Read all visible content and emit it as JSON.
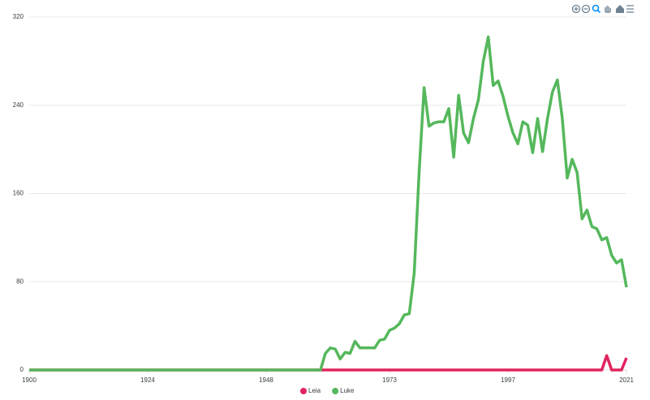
{
  "chart_data": {
    "type": "line",
    "x": [
      1900,
      1901,
      1902,
      1903,
      1904,
      1905,
      1906,
      1907,
      1908,
      1909,
      1910,
      1911,
      1912,
      1913,
      1914,
      1915,
      1916,
      1917,
      1918,
      1919,
      1920,
      1921,
      1922,
      1923,
      1924,
      1925,
      1926,
      1927,
      1928,
      1929,
      1930,
      1931,
      1932,
      1933,
      1934,
      1935,
      1936,
      1937,
      1938,
      1939,
      1940,
      1941,
      1942,
      1943,
      1944,
      1945,
      1946,
      1947,
      1948,
      1949,
      1950,
      1951,
      1952,
      1953,
      1954,
      1955,
      1956,
      1957,
      1958,
      1959,
      1960,
      1961,
      1962,
      1963,
      1964,
      1965,
      1966,
      1967,
      1968,
      1969,
      1970,
      1971,
      1972,
      1973,
      1974,
      1975,
      1976,
      1977,
      1978,
      1979,
      1980,
      1981,
      1982,
      1983,
      1984,
      1985,
      1986,
      1987,
      1988,
      1989,
      1990,
      1991,
      1992,
      1993,
      1994,
      1995,
      1996,
      1997,
      1998,
      1999,
      2000,
      2001,
      2002,
      2003,
      2004,
      2005,
      2006,
      2007,
      2008,
      2009,
      2010,
      2011,
      2012,
      2013,
      2014,
      2015,
      2016,
      2017,
      2018,
      2019,
      2020,
      2021
    ],
    "series": [
      {
        "name": "Leia",
        "color": "#e0245e",
        "values": [
          0,
          0,
          0,
          0,
          0,
          0,
          0,
          0,
          0,
          0,
          0,
          0,
          0,
          0,
          0,
          0,
          0,
          0,
          0,
          0,
          0,
          0,
          0,
          0,
          0,
          0,
          0,
          0,
          0,
          0,
          0,
          0,
          0,
          0,
          0,
          0,
          0,
          0,
          0,
          0,
          0,
          0,
          0,
          0,
          0,
          0,
          0,
          0,
          0,
          0,
          0,
          0,
          0,
          0,
          0,
          0,
          0,
          0,
          0,
          0,
          0,
          0,
          0,
          0,
          0,
          0,
          0,
          0,
          0,
          0,
          0,
          0,
          0,
          0,
          0,
          0,
          0,
          0,
          0,
          0,
          0,
          0,
          0,
          0,
          0,
          0,
          0,
          0,
          0,
          0,
          0,
          0,
          0,
          0,
          0,
          0,
          0,
          0,
          0,
          0,
          0,
          0,
          0,
          0,
          0,
          0,
          0,
          0,
          0,
          0,
          0,
          0,
          0,
          0,
          0,
          0,
          0,
          13,
          0,
          0,
          0,
          11
        ]
      },
      {
        "name": "Luke",
        "color": "#55b85c",
        "values": [
          0,
          0,
          0,
          0,
          0,
          0,
          0,
          0,
          0,
          0,
          0,
          0,
          0,
          0,
          0,
          0,
          0,
          0,
          0,
          0,
          0,
          0,
          0,
          0,
          0,
          0,
          0,
          0,
          0,
          0,
          0,
          0,
          0,
          0,
          0,
          0,
          0,
          0,
          0,
          0,
          0,
          0,
          0,
          0,
          0,
          0,
          0,
          0,
          0,
          0,
          0,
          0,
          0,
          0,
          0,
          0,
          0,
          0,
          0,
          0,
          15,
          20,
          19,
          10,
          16,
          15,
          26,
          20,
          20,
          20,
          20,
          27,
          28,
          36,
          38,
          42,
          50,
          51,
          88,
          180,
          256,
          221,
          224,
          225,
          225,
          237,
          193,
          249,
          215,
          206,
          228,
          245,
          280,
          302,
          258,
          262,
          248,
          230,
          215,
          205,
          225,
          222,
          197,
          228,
          198,
          228,
          252,
          263,
          228,
          174,
          191,
          179,
          137,
          145,
          130,
          128,
          118,
          120,
          104,
          97,
          100,
          75
        ]
      }
    ],
    "xlim": [
      1900,
      2021
    ],
    "xticks": [
      1900,
      1924,
      1948,
      1973,
      1997,
      2021
    ],
    "ylim": [
      0,
      320
    ],
    "yticks": [
      0,
      80,
      160,
      240,
      320
    ],
    "grid": true,
    "legend": "bottom"
  }
}
